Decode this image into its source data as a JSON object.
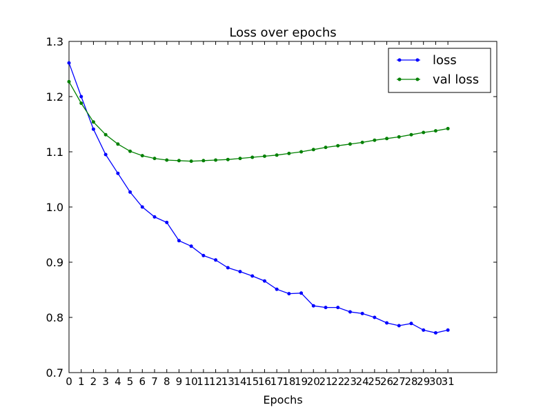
{
  "chart_data": {
    "type": "line",
    "title": "Loss over epochs",
    "xlabel": "Epochs",
    "ylabel": "",
    "xlim": [
      0,
      35
    ],
    "ylim": [
      0.7,
      1.3
    ],
    "x": [
      0,
      1,
      2,
      3,
      4,
      5,
      6,
      7,
      8,
      9,
      10,
      11,
      12,
      13,
      14,
      15,
      16,
      17,
      18,
      19,
      20,
      21,
      22,
      23,
      24,
      25,
      26,
      27,
      28,
      29,
      30,
      31
    ],
    "xticks": [
      "0",
      "1",
      "2",
      "3",
      "4",
      "5",
      "6",
      "7",
      "8",
      "9",
      "10",
      "11",
      "12",
      "13",
      "14",
      "15",
      "16",
      "17",
      "18",
      "19",
      "20",
      "21",
      "22",
      "23",
      "24",
      "25",
      "26",
      "27",
      "28",
      "29",
      "30",
      "31"
    ],
    "yticks": [
      "0.7",
      "0.8",
      "0.9",
      "1.0",
      "1.1",
      "1.2",
      "1.3"
    ],
    "grid": false,
    "legend_position": "top-right",
    "series": [
      {
        "name": "loss",
        "color": "#0000ff",
        "values": [
          1.261,
          1.2,
          1.141,
          1.095,
          1.061,
          1.027,
          1.0,
          0.982,
          0.972,
          0.939,
          0.929,
          0.912,
          0.904,
          0.89,
          0.883,
          0.875,
          0.866,
          0.851,
          0.843,
          0.844,
          0.821,
          0.818,
          0.818,
          0.81,
          0.807,
          0.8,
          0.79,
          0.785,
          0.789,
          0.777,
          0.772,
          0.777
        ]
      },
      {
        "name": "val loss",
        "color": "#008000",
        "values": [
          1.227,
          1.188,
          1.154,
          1.131,
          1.114,
          1.101,
          1.093,
          1.088,
          1.085,
          1.084,
          1.083,
          1.084,
          1.085,
          1.086,
          1.088,
          1.09,
          1.092,
          1.094,
          1.097,
          1.1,
          1.104,
          1.108,
          1.111,
          1.114,
          1.117,
          1.121,
          1.124,
          1.127,
          1.131,
          1.135,
          1.138,
          1.142
        ]
      }
    ]
  }
}
